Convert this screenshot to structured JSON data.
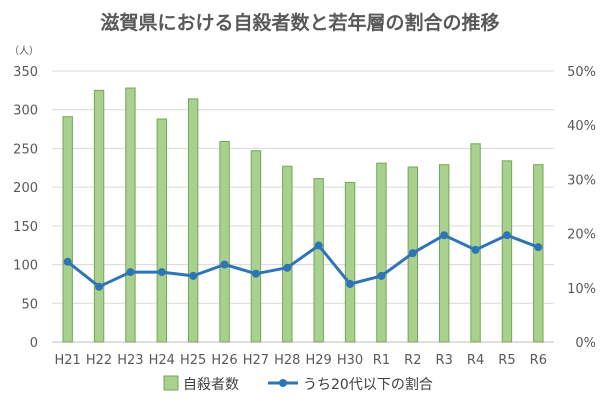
{
  "chart_data": {
    "type": "bar",
    "title": "滋賀県における自殺者数と若年層の割合の推移",
    "y_unit": "（人）",
    "categories": [
      "H21",
      "H22",
      "H23",
      "H24",
      "H25",
      "H26",
      "H27",
      "H28",
      "H29",
      "H30",
      "R1",
      "R2",
      "R3",
      "R4",
      "R5",
      "R6"
    ],
    "series": [
      {
        "name": "自殺者数",
        "type": "bar",
        "axis": "left",
        "color": "#a9d18e",
        "values": [
          291,
          325,
          328,
          288,
          314,
          259,
          247,
          227,
          211,
          206,
          231,
          226,
          229,
          256,
          234,
          229
        ]
      },
      {
        "name": "うち20代以下の割合",
        "type": "line",
        "axis": "right",
        "color": "#2e75b6",
        "values": [
          14.8,
          10.2,
          12.9,
          12.9,
          12.2,
          14.3,
          12.6,
          13.7,
          17.8,
          10.7,
          12.2,
          16.4,
          19.7,
          17.0,
          19.7,
          17.5
        ]
      }
    ],
    "y_left": {
      "min": 0,
      "max": 350,
      "ticks": [
        0,
        50,
        100,
        150,
        200,
        250,
        300,
        350
      ]
    },
    "y_right": {
      "min": 0,
      "max": 50,
      "ticks": [
        "0%",
        "10%",
        "20%",
        "30%",
        "40%",
        "50%"
      ]
    },
    "grid": true,
    "legend_position": "bottom"
  }
}
